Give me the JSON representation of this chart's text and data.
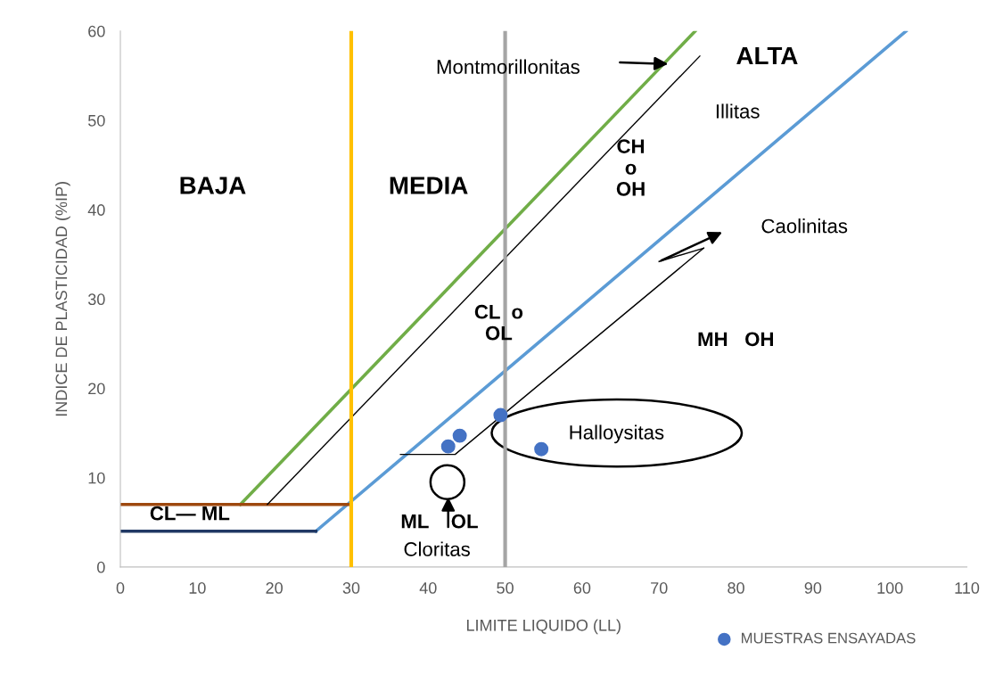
{
  "chart_data": {
    "type": "line",
    "xlabel": "LIMITE LIQUIDO (LL)",
    "ylabel": "INDICE DE PLASTICIDAD (%IP)",
    "xlim": [
      0,
      110
    ],
    "xticks": [
      0,
      10,
      20,
      30,
      40,
      50,
      60,
      70,
      80,
      90,
      100,
      110
    ],
    "ylim": [
      0,
      60
    ],
    "yticks": [
      0,
      10,
      20,
      30,
      40,
      50,
      60
    ],
    "grid": false,
    "legend": "bottom",
    "marker": "none",
    "line_style": "solid",
    "series": [
      {
        "color": "#70ad47",
        "x": [
          15.6,
          74.7
        ],
        "values": [
          7.0,
          60
        ]
      },
      {
        "color": "#5b9bd5",
        "x": [
          25.4,
          102.1
        ],
        "values": [
          4.0,
          60
        ]
      },
      {
        "color": "#203864",
        "x": [
          0,
          25.4
        ],
        "values": [
          4.0,
          4.0
        ]
      },
      {
        "color": "#9e480e",
        "x": [
          0,
          30
        ],
        "values": [
          7.0,
          7.0
        ]
      },
      {
        "color": "#000000",
        "x": [
          19.1,
          75.3
        ],
        "values": [
          7.0,
          57.2
        ]
      },
      {
        "color": "#000000",
        "x": [
          36.4,
          43.5,
          75.8
        ],
        "values": [
          12.6,
          12.6,
          35.7
        ]
      },
      {
        "type": "scatter",
        "name": "MUESTRAS ENSAYADAS",
        "color": "#4472c4",
        "marker": "circle",
        "x": [
          42.6,
          44.1,
          49.4,
          54.7
        ],
        "values": [
          13.5,
          14.7,
          17.0,
          13.2
        ]
      }
    ],
    "ref_lines": [
      {
        "axis": "x",
        "value": 30,
        "color": "#ffc000"
      },
      {
        "axis": "x",
        "value": 50,
        "color": "#a5a5a5"
      }
    ],
    "annotations": [
      "BAJA",
      "MEDIA",
      "ALTA",
      "CH\no\nOH",
      "CL  o\nOL",
      "MH   OH",
      "CL— ML",
      "ML    OL",
      "Cloritas",
      "Halloysitas",
      "Caolinitas",
      "Illitas",
      "Montmorillonitas"
    ]
  }
}
